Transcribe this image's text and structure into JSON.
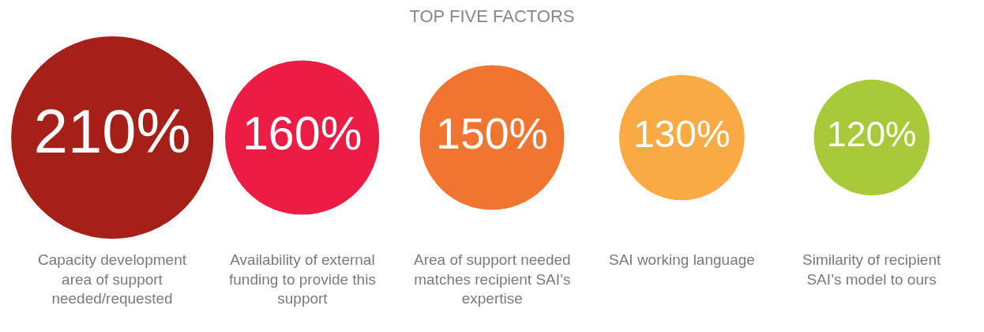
{
  "chart_data": {
    "type": "other",
    "title": "TOP FIVE FACTORS",
    "categories": [
      "Capacity development area of support needed/requested",
      "Availability of external funding to provide this support",
      "Area of support needed matches recipient SAI’s expertise",
      "SAI working language",
      "Similarity of recipient SAI’s model to ours"
    ],
    "values": [
      210,
      160,
      150,
      130,
      120
    ],
    "value_labels": [
      "210%",
      "160%",
      "150%",
      "130%",
      "120%"
    ],
    "colors": [
      "#a6201a",
      "#ec1c45",
      "#f07530",
      "#f8aa45",
      "#a8c93a"
    ]
  }
}
